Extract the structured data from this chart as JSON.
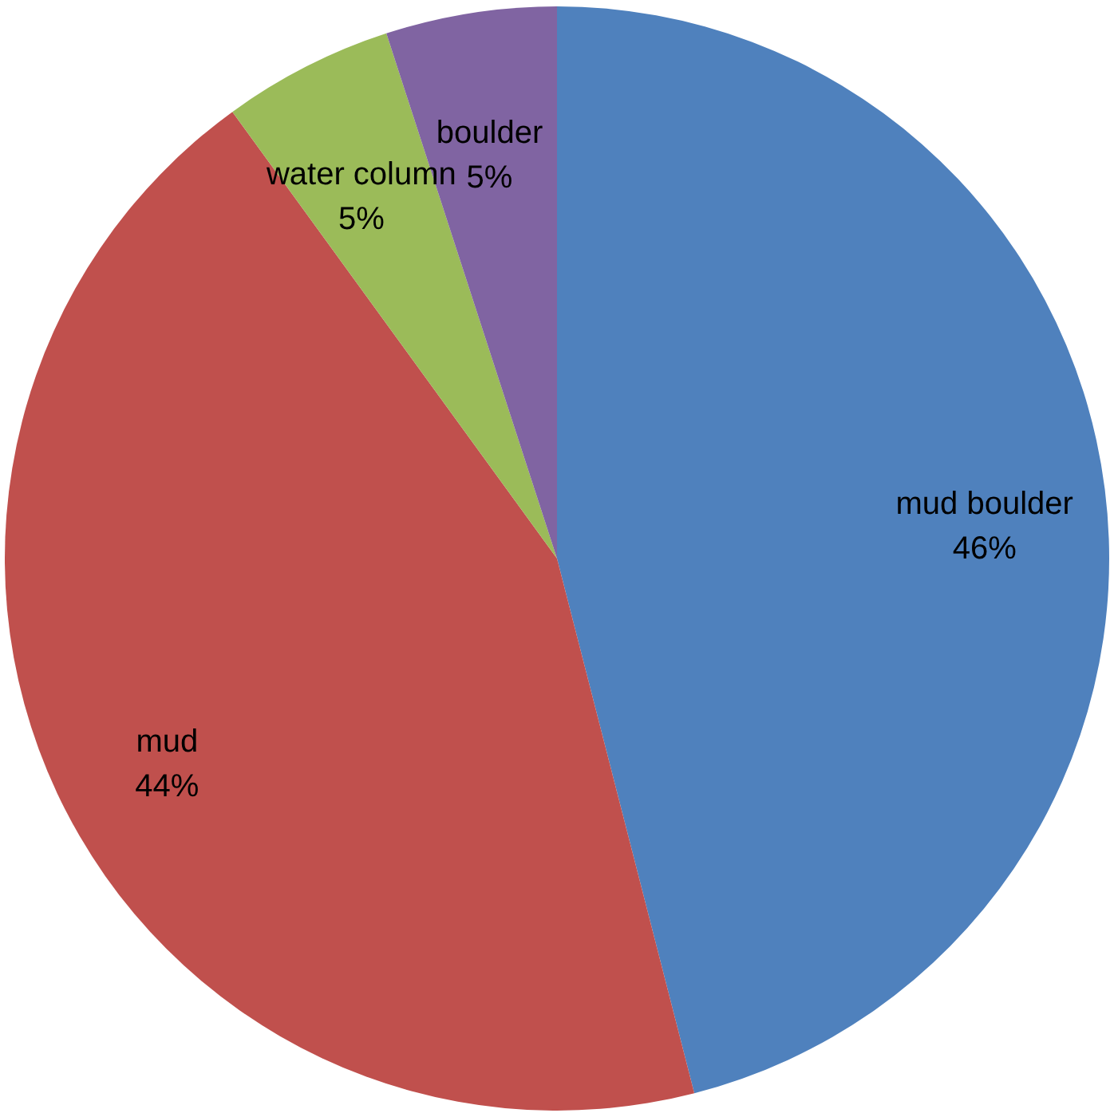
{
  "chart_data": {
    "type": "pie",
    "categories": [
      "mud boulder",
      "mud",
      "water column",
      "boulder"
    ],
    "values": [
      46,
      44,
      5,
      5
    ],
    "value_labels": [
      "46%",
      "44%",
      "5%",
      "5%"
    ],
    "colors": [
      "#4f81bd",
      "#c0504d",
      "#9bbb59",
      "#8064a2"
    ],
    "legend": false
  }
}
